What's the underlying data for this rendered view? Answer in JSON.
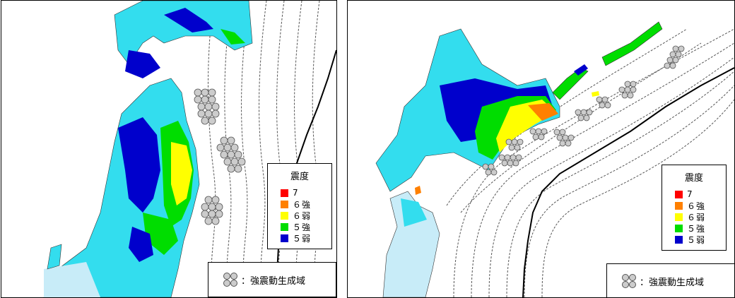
{
  "legend": {
    "title": "震度",
    "items": [
      {
        "label": "7",
        "color": "#ff0000"
      },
      {
        "label": "６強",
        "color": "#ff8000"
      },
      {
        "label": "６弱",
        "color": "#ffff00"
      },
      {
        "label": "５強",
        "color": "#00dd00"
      },
      {
        "label": "５弱",
        "color": "#0000cc"
      }
    ]
  },
  "zone_legend": {
    "label": "：強震動生成域"
  },
  "colors": {
    "sea": "#ffffff",
    "land_low": "#33ddee",
    "land_outside": "#c8ecf8",
    "trench": "#000000"
  }
}
